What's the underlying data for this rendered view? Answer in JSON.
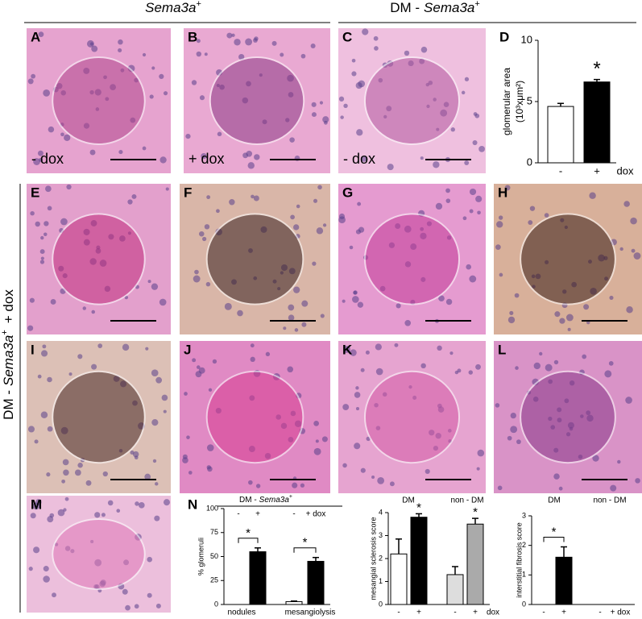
{
  "header": {
    "left": {
      "gene": "Sema3a",
      "sup": "+"
    },
    "right": {
      "prefix": "DM -",
      "gene": "Sema3a",
      "sup": "+"
    }
  },
  "side_label": {
    "prefix": "DM -",
    "gene": "Sema3a",
    "sup": "+",
    "suffix": "+ dox"
  },
  "panels": [
    {
      "label": "A",
      "caption": "- dox"
    },
    {
      "label": "B",
      "caption": "+ dox"
    },
    {
      "label": "C",
      "caption": "- dox"
    },
    {
      "label": "D"
    },
    {
      "label": "E"
    },
    {
      "label": "F"
    },
    {
      "label": "G"
    },
    {
      "label": "H"
    },
    {
      "label": "I"
    },
    {
      "label": "J"
    },
    {
      "label": "K"
    },
    {
      "label": "L"
    },
    {
      "label": "M"
    },
    {
      "label": "N"
    }
  ],
  "chart_data": [
    {
      "type": "bar",
      "y_label": [
        "glomerular area",
        "(10³xμm²)"
      ],
      "categories": [
        "-",
        "+"
      ],
      "x_suffix": "dox",
      "values": [
        4.6,
        6.6
      ],
      "errors": [
        0.25,
        0.2
      ],
      "colors": [
        "#ffffff",
        "#000000"
      ],
      "ylim": [
        0,
        10
      ],
      "yticks": [
        0,
        5,
        10
      ],
      "significance": [
        "*"
      ]
    },
    {
      "type": "bar",
      "y_label": [
        "% glomeruli"
      ],
      "group_header": {
        "prefix": "DM -",
        "gene": "Sema3a",
        "sup": "+"
      },
      "categories": [
        "-",
        "+",
        "-",
        "+ dox"
      ],
      "groups": [
        "nodules",
        "mesangiolysis"
      ],
      "values": [
        0,
        55,
        3,
        45
      ],
      "errors": [
        null,
        4,
        0.6,
        4
      ],
      "colors": [
        "#ffffff",
        "#000000",
        "#ffffff",
        "#000000"
      ],
      "ylim": [
        0,
        100
      ],
      "yticks": [
        0,
        25,
        50,
        75,
        100
      ],
      "significance": [
        "*",
        "*"
      ]
    },
    {
      "type": "bar",
      "y_label": [
        "mesangial sclerosis score"
      ],
      "categories": [
        "-",
        "+",
        "-",
        "+"
      ],
      "x_suffix": "dox",
      "groups": [
        "DM",
        "non - DM"
      ],
      "values": [
        2.2,
        3.8,
        1.3,
        3.5
      ],
      "errors": [
        0.65,
        0.15,
        0.35,
        0.25
      ],
      "colors": [
        "#ffffff",
        "#000000",
        "#dddddd",
        "#aaaaaa"
      ],
      "ylim": [
        0,
        4
      ],
      "yticks": [
        0,
        1,
        2,
        3,
        4
      ],
      "significance": [
        "*",
        "*"
      ]
    },
    {
      "type": "bar",
      "y_label": [
        "interstitial fibrosis score"
      ],
      "categories": [
        "-",
        "+",
        "-",
        "+ dox"
      ],
      "groups": [
        "DM",
        "non - DM"
      ],
      "values": [
        0,
        1.6,
        0,
        0
      ],
      "errors": [
        null,
        0.35,
        null,
        null
      ],
      "colors": [
        "#ffffff",
        "#000000",
        "#ffffff",
        "#000000"
      ],
      "ylim": [
        0,
        3
      ],
      "yticks": [
        0,
        1,
        2,
        3
      ],
      "significance": [
        "*"
      ]
    }
  ]
}
